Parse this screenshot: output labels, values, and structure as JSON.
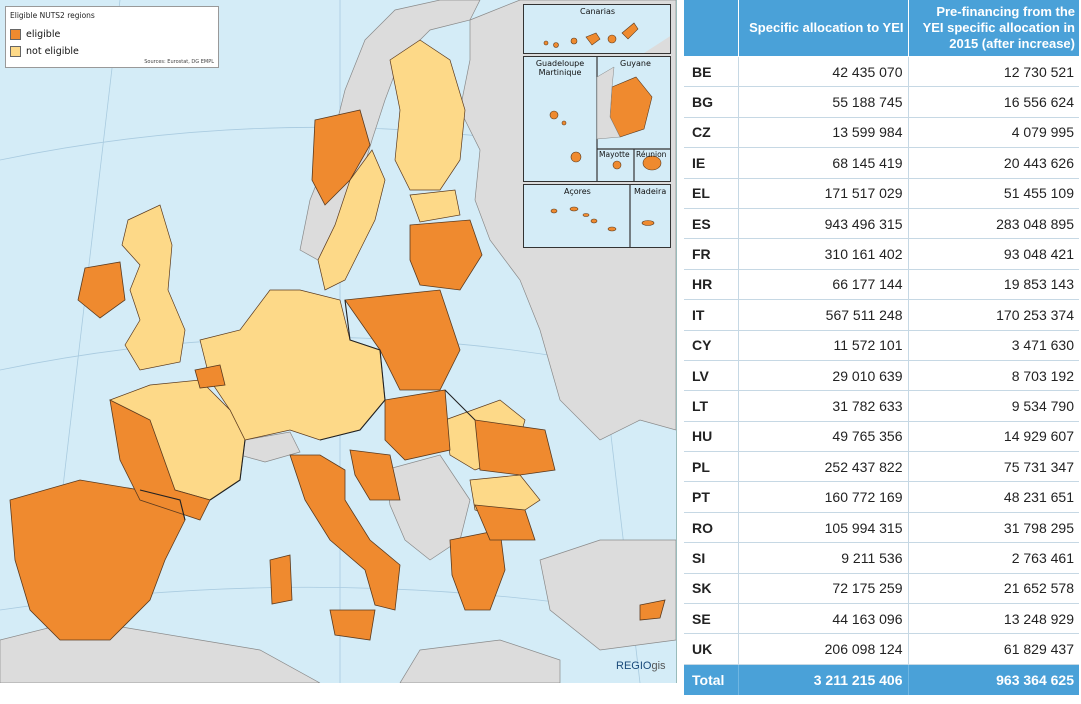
{
  "map": {
    "legend": {
      "title": "Eligible NUTS2 regions",
      "items": [
        {
          "label": "eligible",
          "color": "#ef8a2f"
        },
        {
          "label": "not eligible",
          "color": "#fdd988"
        }
      ],
      "source": "Sources: Eurostat, DG EMPL"
    },
    "colors": {
      "sea": "#d4ecf7",
      "eligible": "#ef8a2f",
      "not_eligible": "#fdd988",
      "non_eu": "#dcdcdc",
      "border": "#5b3a1e"
    },
    "insets": {
      "canarias": "Canarias",
      "guadeloupe_martinique": "Guadeloupe\nMartinique",
      "guyane": "Guyane",
      "mayotte": "Mayotte",
      "reunion": "Réunion",
      "acores": "Açores",
      "madeira": "Madeira"
    },
    "brand": {
      "main": "REGIO",
      "sub": "gis"
    }
  },
  "table": {
    "headers": [
      "",
      "Specific allocation to YEI",
      "Pre-financing from the YEI specific allocation in 2015 (after increase)"
    ],
    "rows": [
      {
        "code": "BE",
        "allocation": "42 435 070",
        "prefinancing": "12 730 521"
      },
      {
        "code": "BG",
        "allocation": "55 188 745",
        "prefinancing": "16 556 624"
      },
      {
        "code": "CZ",
        "allocation": "13 599 984",
        "prefinancing": "4 079 995"
      },
      {
        "code": "IE",
        "allocation": "68 145 419",
        "prefinancing": "20 443 626"
      },
      {
        "code": "EL",
        "allocation": "171 517 029",
        "prefinancing": "51 455 109"
      },
      {
        "code": "ES",
        "allocation": "943 496 315",
        "prefinancing": "283 048 895"
      },
      {
        "code": "FR",
        "allocation": "310 161 402",
        "prefinancing": "93 048 421"
      },
      {
        "code": "HR",
        "allocation": "66 177 144",
        "prefinancing": "19 853 143"
      },
      {
        "code": "IT",
        "allocation": "567 511 248",
        "prefinancing": "170 253 374"
      },
      {
        "code": "CY",
        "allocation": "11 572 101",
        "prefinancing": "3 471 630"
      },
      {
        "code": "LV",
        "allocation": "29 010 639",
        "prefinancing": "8 703 192"
      },
      {
        "code": "LT",
        "allocation": "31 782 633",
        "prefinancing": "9 534 790"
      },
      {
        "code": "HU",
        "allocation": "49 765 356",
        "prefinancing": "14 929 607"
      },
      {
        "code": "PL",
        "allocation": "252 437 822",
        "prefinancing": "75 731 347"
      },
      {
        "code": "PT",
        "allocation": "160 772 169",
        "prefinancing": "48 231 651"
      },
      {
        "code": "RO",
        "allocation": "105 994 315",
        "prefinancing": "31 798 295"
      },
      {
        "code": "SI",
        "allocation": "9 211 536",
        "prefinancing": "2 763 461"
      },
      {
        "code": "SK",
        "allocation": "72 175 259",
        "prefinancing": "21 652 578"
      },
      {
        "code": "SE",
        "allocation": "44 163 096",
        "prefinancing": "13 248 929"
      },
      {
        "code": "UK",
        "allocation": "206 098 124",
        "prefinancing": "61 829 437"
      }
    ],
    "total": {
      "code": "Total",
      "allocation": "3 211 215 406",
      "prefinancing": "963 364 625"
    }
  }
}
